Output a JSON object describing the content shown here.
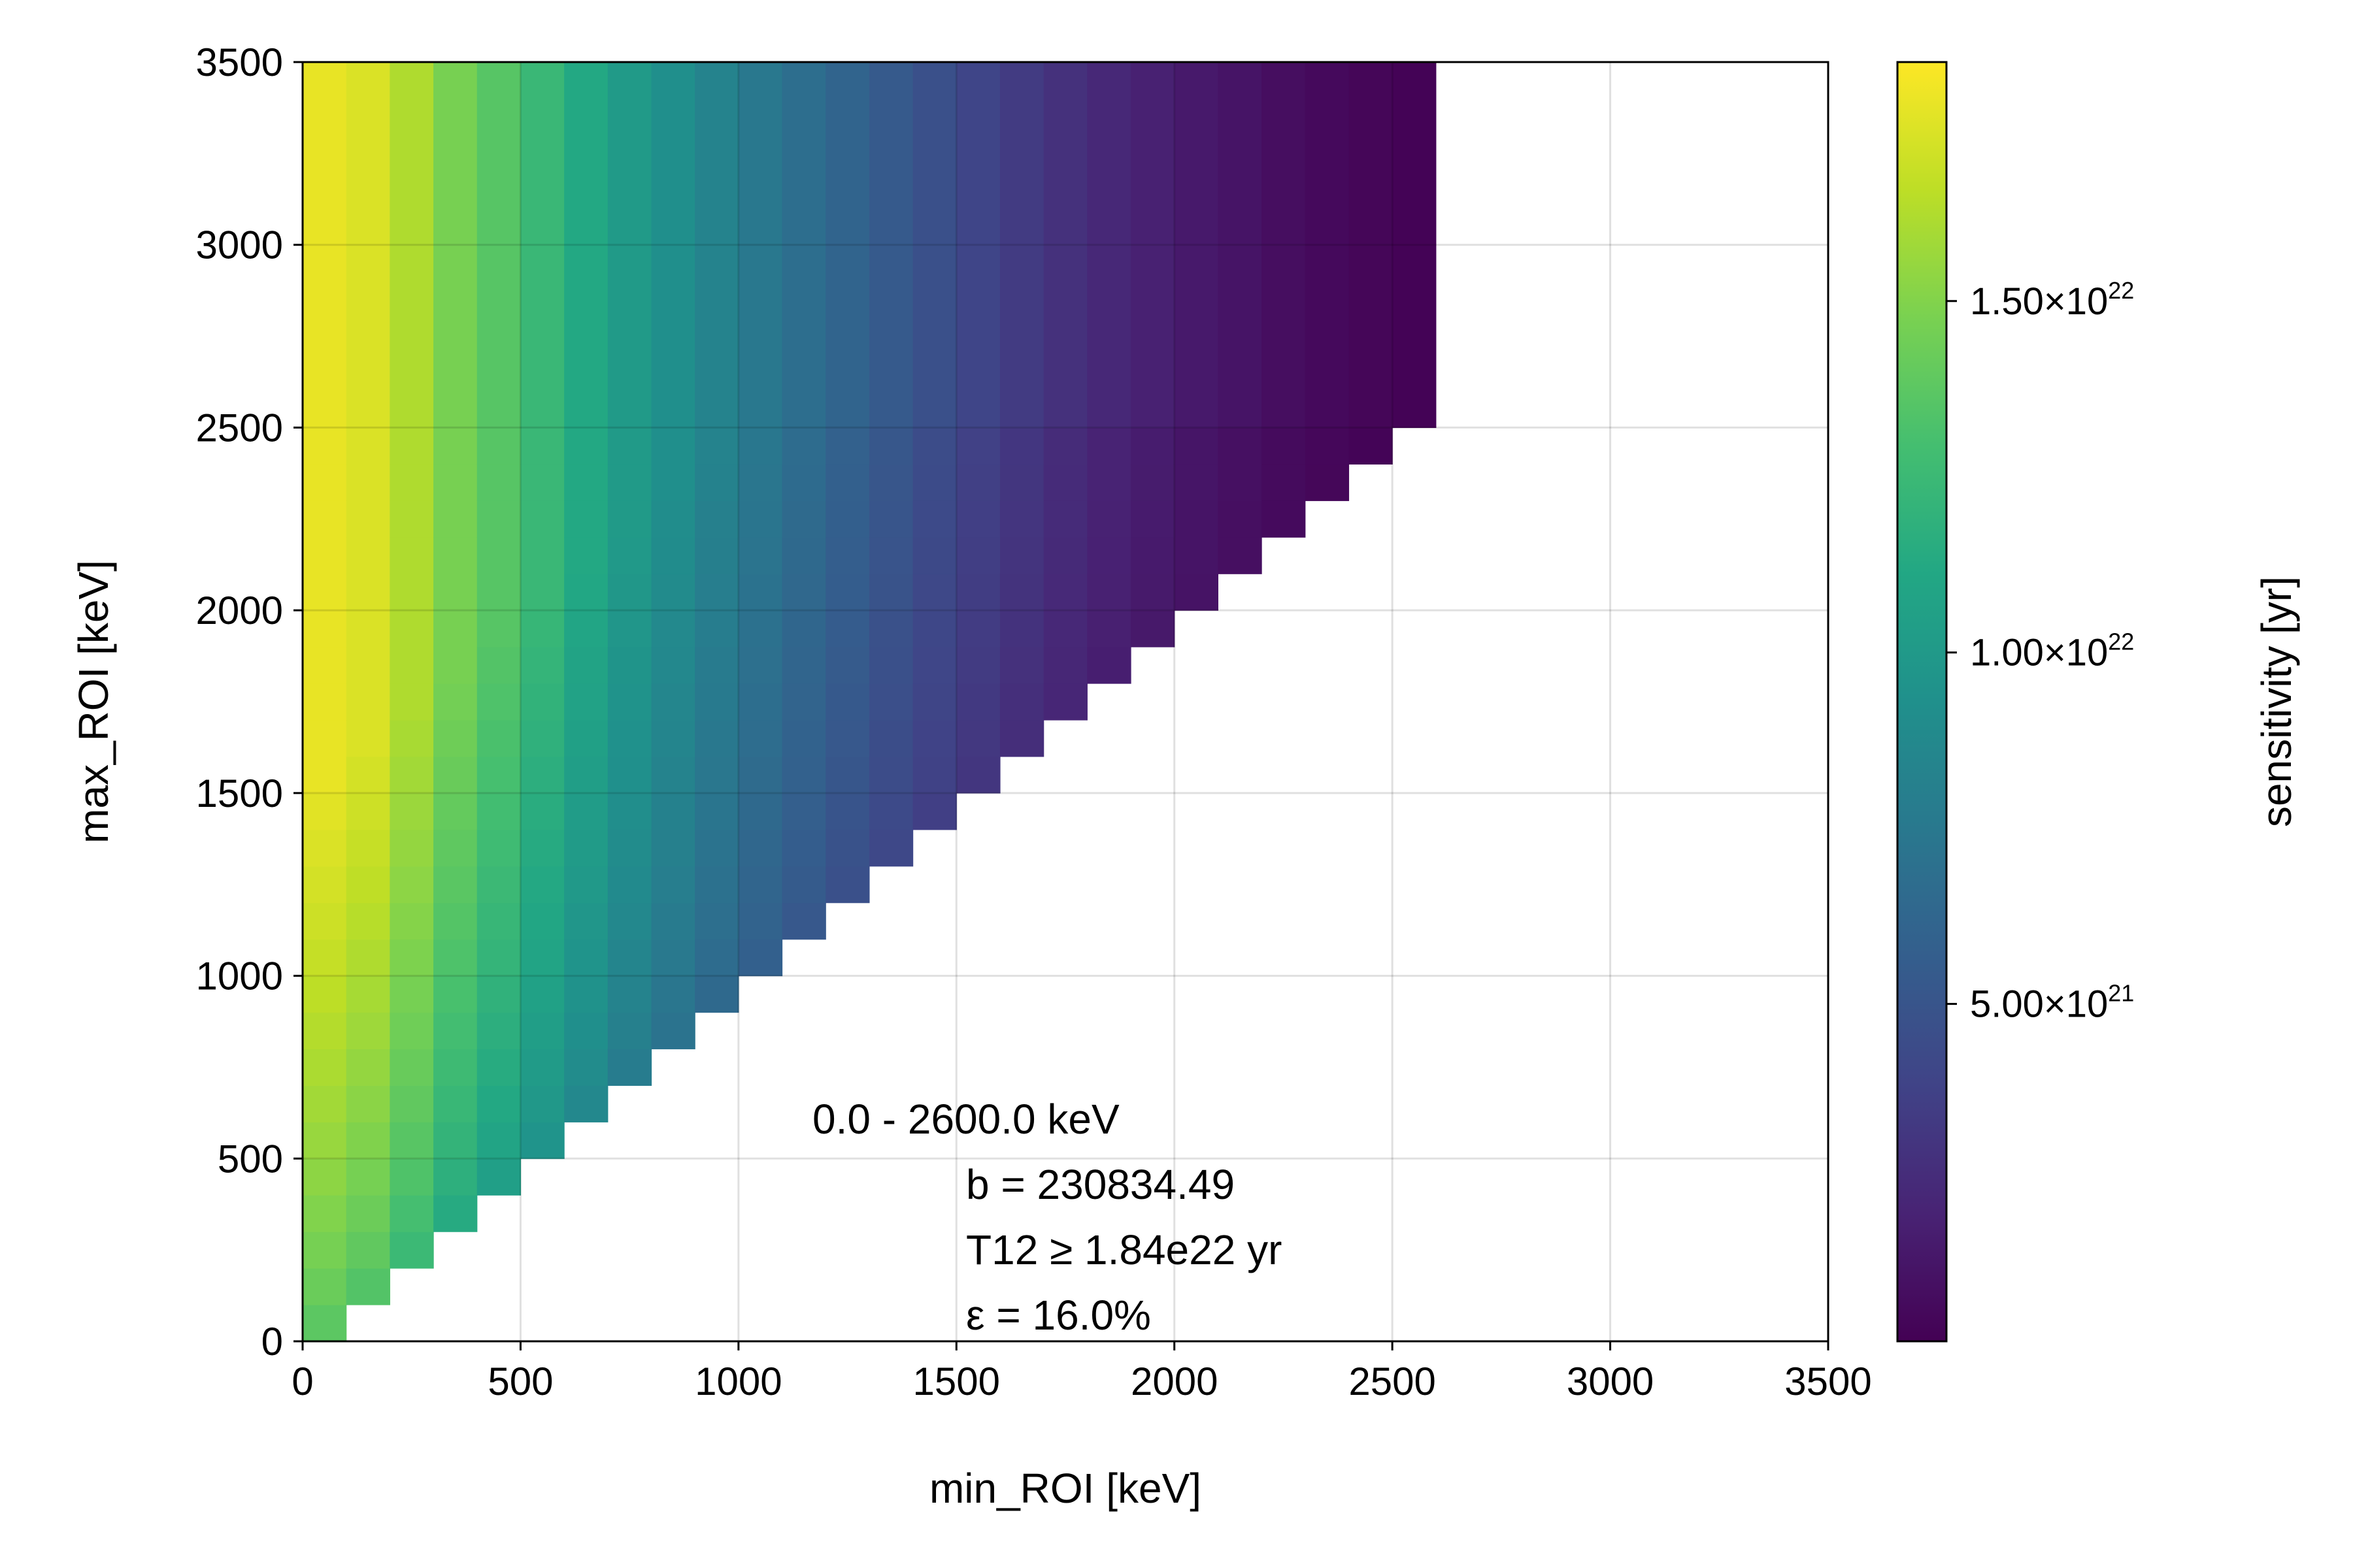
{
  "chart_data": {
    "type": "heatmap",
    "xlabel": "min_ROI [keV]",
    "ylabel": "max_ROI [keV]",
    "xlim": [
      0,
      3500
    ],
    "ylim": [
      0,
      3500
    ],
    "xticks": [
      "0",
      "500",
      "1000",
      "1500",
      "2000",
      "2500",
      "3000",
      "3500"
    ],
    "yticks": [
      "0",
      "500",
      "1000",
      "1500",
      "2000",
      "2500",
      "3000",
      "3500"
    ],
    "grid": true,
    "cell_x_size_keV": 100,
    "cell_y_size_keV": 100,
    "x_cell_starts": [
      0,
      100,
      200,
      300,
      400,
      500,
      600,
      700,
      800,
      900,
      1000,
      1100,
      1200,
      1300,
      1400,
      1500,
      1600,
      1700,
      1800,
      1900,
      2000,
      2100,
      2200,
      2300,
      2400,
      2500
    ],
    "y_rows_min": [
      0,
      100,
      200,
      300,
      400,
      500,
      600,
      700,
      800,
      900,
      1000,
      1100,
      1200,
      1300,
      1400,
      1500,
      1600,
      1700,
      1800,
      1900,
      2000,
      2100,
      2200,
      2300,
      2400,
      2500
    ],
    "y_max": 3500,
    "column_sensitivity_yr": [
      1.78e+22,
      1.74e+22,
      1.62e+22,
      1.47e+22,
      1.36e+22,
      1.24e+22,
      1.12e+22,
      1.01e+22,
      9.2e+21,
      8.3e+21,
      7.5e+21,
      6.8e+21,
      6.1e+21,
      5.4e+21,
      4.7e+21,
      4e+21,
      3.4e+21,
      2.8e+21,
      2.3e+21,
      1.9e+21,
      1.5e+21,
      1.2e+21,
      9e+20,
      6.5e+20,
      4.5e+20,
      3e+20
    ],
    "colorbar": {
      "label": "sensitivity [yr]",
      "colormap": "viridis",
      "range": [
        2e+20,
        1.84e+22
      ],
      "ticks": [
        {
          "value": 5e+21,
          "mantissa": "5.00×10",
          "exponent": "21"
        },
        {
          "value": 1e+22,
          "mantissa": "1.00×10",
          "exponent": "22"
        },
        {
          "value": 1.5e+22,
          "mantissa": "1.50×10",
          "exponent": "22"
        }
      ]
    },
    "annotations": [
      "0.0 - 2600.0 keV",
      "b  = 230834.49",
      "T12 ≥  1.84e22 yr",
      "ε = 16.0%"
    ]
  }
}
